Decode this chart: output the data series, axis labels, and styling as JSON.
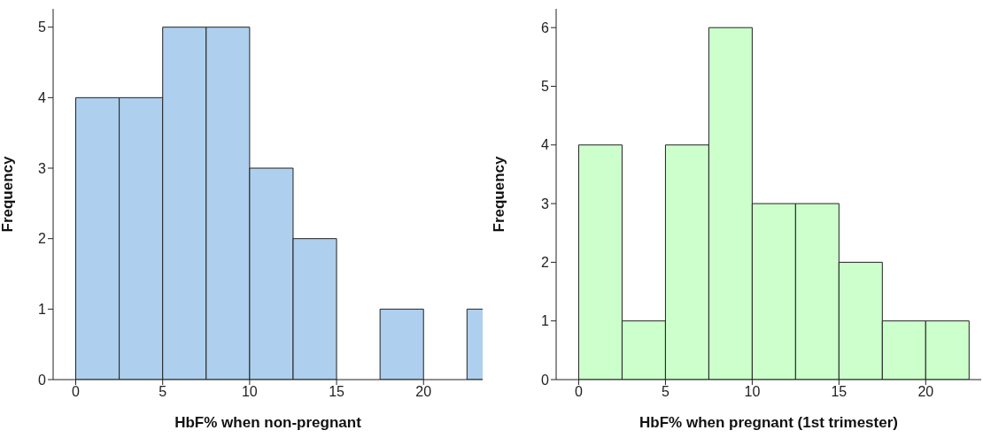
{
  "chart_data": [
    {
      "type": "histogram",
      "xlabel": "HbF% when non-pregnant",
      "ylabel": "Frequency",
      "bins": [
        0,
        2.5,
        5,
        7.5,
        10,
        12.5,
        15,
        17.5,
        20,
        22.5,
        25
      ],
      "values": [
        4,
        4,
        5,
        5,
        3,
        2,
        0,
        1,
        0,
        1
      ],
      "color": "#aecfee",
      "xlim": [
        -1.3,
        23.4
      ],
      "xticks": [
        0,
        5,
        10,
        15,
        20
      ],
      "ylim": [
        0,
        5.26
      ],
      "yticks": [
        0,
        1,
        2,
        3,
        4,
        5
      ],
      "grid": false
    },
    {
      "type": "histogram",
      "xlabel": "HbF% when pregnant (1st trimester)",
      "ylabel": "Frequency",
      "bins": [
        0,
        2.5,
        5,
        7.5,
        10,
        12.5,
        15,
        17.5,
        20,
        22.5
      ],
      "values": [
        4,
        1,
        4,
        6,
        3,
        3,
        2,
        1,
        1
      ],
      "color": "#ccffcc",
      "xlim": [
        -1.3,
        23.2
      ],
      "xticks": [
        0,
        5,
        10,
        15,
        20
      ],
      "ylim": [
        0,
        6.32
      ],
      "yticks": [
        0,
        1,
        2,
        3,
        4,
        5,
        6
      ],
      "grid": false
    }
  ]
}
